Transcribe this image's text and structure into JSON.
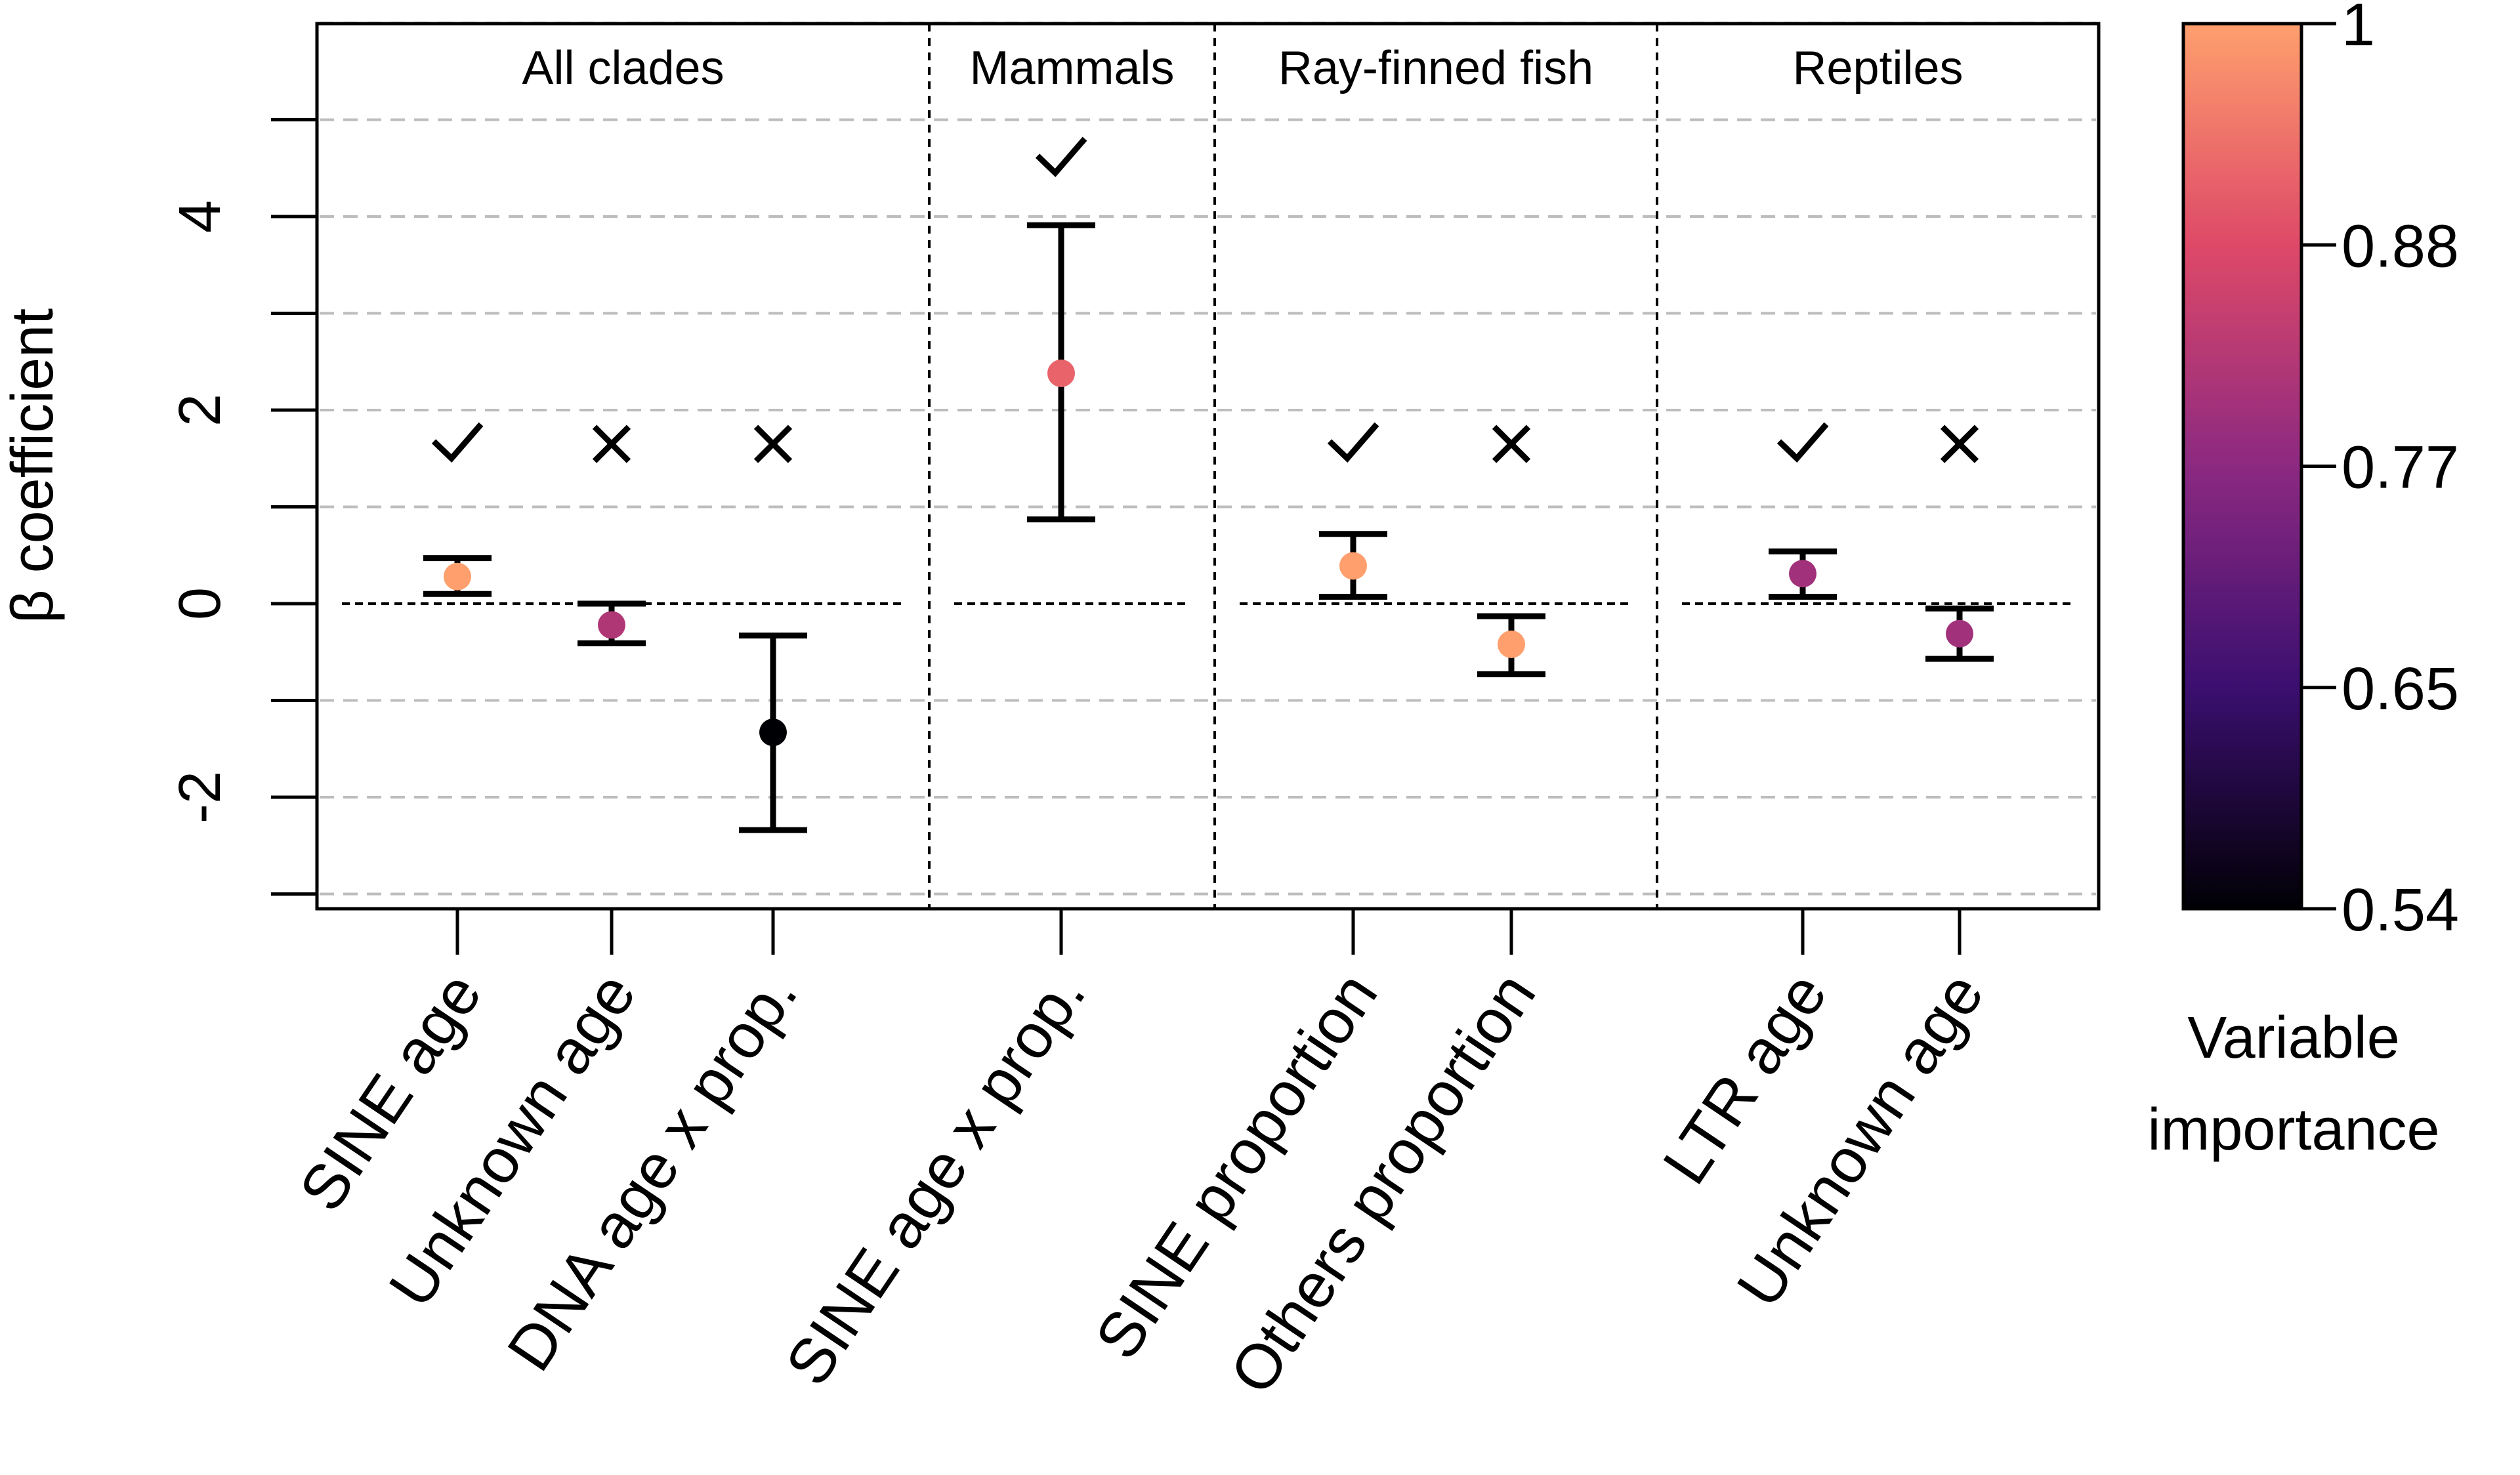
{
  "chart_data": {
    "type": "scatter",
    "ylabel": "β coefficient",
    "ylim": [
      -3.15,
      6
    ],
    "yticks": [
      -2,
      0,
      2,
      4
    ],
    "grid": true,
    "panels": [
      {
        "label": "All clades",
        "items": [
          {
            "label": "SINE age",
            "estimate": 0.28,
            "lower": 0.1,
            "upper": 0.47,
            "importance": 1.0,
            "significant": true
          },
          {
            "label": "Unknown age",
            "estimate": -0.22,
            "lower": -0.41,
            "upper": 0.0,
            "importance": 0.82,
            "significant": false
          },
          {
            "label": "DNA age x prop.",
            "estimate": -1.33,
            "lower": -2.34,
            "upper": -0.33,
            "importance": 0.54,
            "significant": false
          }
        ]
      },
      {
        "label": "Mammals",
        "items": [
          {
            "label": "SINE age x prop.",
            "estimate": 2.38,
            "lower": 0.87,
            "upper": 3.91,
            "importance": 0.92,
            "significant": true
          }
        ]
      },
      {
        "label": "Ray-finned fish",
        "items": [
          {
            "label": "SINE proportion",
            "estimate": 0.39,
            "lower": 0.07,
            "upper": 0.72,
            "importance": 1.0,
            "significant": true
          },
          {
            "label": "Others proportion",
            "estimate": -0.42,
            "lower": -0.73,
            "upper": -0.13,
            "importance": 1.0,
            "significant": false
          }
        ]
      },
      {
        "label": "Reptiles",
        "items": [
          {
            "label": "LTR age",
            "estimate": 0.31,
            "lower": 0.07,
            "upper": 0.54,
            "importance": 0.8,
            "significant": true
          },
          {
            "label": "Unknown age",
            "estimate": -0.31,
            "lower": -0.57,
            "upper": -0.05,
            "importance": 0.8,
            "significant": false
          }
        ]
      }
    ],
    "colorbar": {
      "title_line1": "Variable",
      "title_line2": "importance",
      "min": 0.54,
      "max": 1,
      "ticks": [
        "1",
        "0.88",
        "0.77",
        "0.65",
        "0.54"
      ],
      "palette": [
        "#000004",
        "#3b0f70",
        "#8c2981",
        "#de4968",
        "#fe9f6d",
        "#fcfdbf"
      ]
    }
  }
}
